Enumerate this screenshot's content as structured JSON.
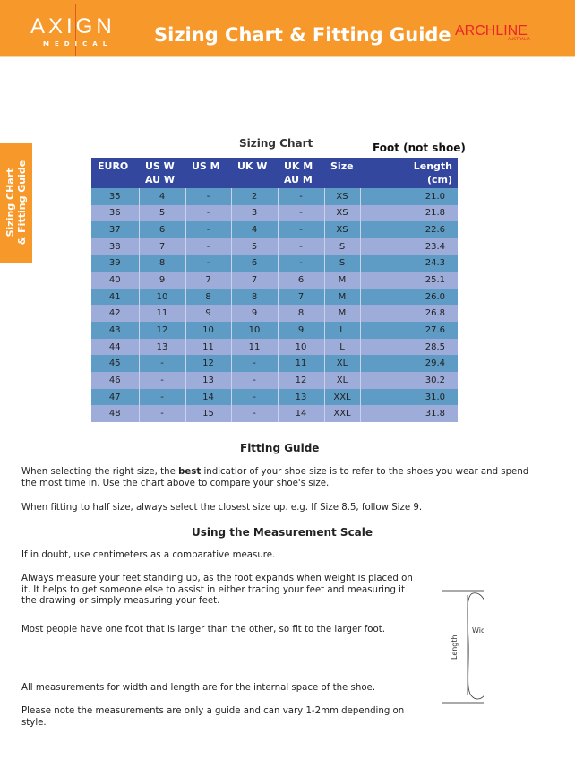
{
  "header": {
    "logo_main": "AXIGN",
    "logo_sub": "MEDICAL",
    "title": "Sizing Chart & Fitting Guide",
    "brand": "ARCHLINE",
    "brand_sub": "AUSTRALIA"
  },
  "side_tab": {
    "line1": "Sizing CHart",
    "line2": "& Fitting Guide"
  },
  "sizing": {
    "title": "Sizing Chart",
    "foot_note": "Foot (not shoe)",
    "columns": [
      [
        "EURO",
        ""
      ],
      [
        "US W",
        "AU W"
      ],
      [
        "US M",
        ""
      ],
      [
        "UK W",
        ""
      ],
      [
        "UK M",
        "AU M"
      ],
      [
        "Size",
        ""
      ],
      [
        "Length",
        "(cm)"
      ]
    ],
    "rows": [
      [
        "35",
        "4",
        "-",
        "2",
        "-",
        "XS",
        "21.0"
      ],
      [
        "36",
        "5",
        "-",
        "3",
        "-",
        "XS",
        "21.8"
      ],
      [
        "37",
        "6",
        "-",
        "4",
        "-",
        "XS",
        "22.6"
      ],
      [
        "38",
        "7",
        "-",
        "5",
        "-",
        "S",
        "23.4"
      ],
      [
        "39",
        "8",
        "-",
        "6",
        "-",
        "S",
        "24.3"
      ],
      [
        "40",
        "9",
        "7",
        "7",
        "6",
        "M",
        "25.1"
      ],
      [
        "41",
        "10",
        "8",
        "8",
        "7",
        "M",
        "26.0"
      ],
      [
        "42",
        "11",
        "9",
        "9",
        "8",
        "M",
        "26.8"
      ],
      [
        "43",
        "12",
        "10",
        "10",
        "9",
        "L",
        "27.6"
      ],
      [
        "44",
        "13",
        "11",
        "11",
        "10",
        "L",
        "28.5"
      ],
      [
        "45",
        "-",
        "12",
        "-",
        "11",
        "XL",
        "29.4"
      ],
      [
        "46",
        "-",
        "13",
        "-",
        "12",
        "XL",
        "30.2"
      ],
      [
        "47",
        "-",
        "14",
        "-",
        "13",
        "XXL",
        "31.0"
      ],
      [
        "48",
        "-",
        "15",
        "-",
        "14",
        "XXL",
        "31.8"
      ]
    ]
  },
  "fitting": {
    "title": "Fitting Guide",
    "p1_a": "When selecting the right size, the ",
    "p1_bold": "best",
    "p1_b": " indicatior of your shoe size is to refer to the shoes you wear and spend the most time in. Use the chart above to compare your shoe's size.",
    "p2": "When fitting to half size, always select the closest size up. e.g. If Size 8.5, follow Size 9."
  },
  "measure": {
    "title": "Using the Measurement Scale",
    "p1": "If in doubt, use centimeters as a comparative measure.",
    "p2": "Always measure your feet standing up, as the foot expands when weight is placed on it. It helps to get someone else to assist in either tracing your feet and measuring it the drawing or simply measuring your feet.",
    "p3": "Most people have one foot that is larger than the other, so fit to the larger foot.",
    "p4": "All measurements for width and length are for the internal space of the shoe.",
    "p5": "Please note the measurements are only a guide and can vary 1-2mm depending on style.",
    "diagram_length": "Length",
    "diagram_width": "Width"
  }
}
